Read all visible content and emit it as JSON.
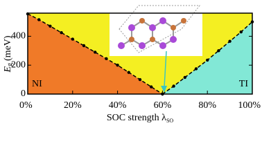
{
  "chart_data": {
    "type": "area",
    "y_label": {
      "symbol": "E",
      "sub": "g",
      "unit": "(meV)"
    },
    "x_label": {
      "text": "SOC strength λ",
      "sub": "SO"
    },
    "region_labels": [
      "NI",
      "TI"
    ],
    "background_color": "#f4ef22",
    "series": [
      {
        "name": "NI",
        "color": "#f07a28",
        "x": [
          0,
          5,
          10,
          15,
          20,
          25,
          30,
          35,
          40,
          45,
          50,
          55,
          60
        ],
        "values": [
          555,
          515,
          470,
          425,
          380,
          335,
          290,
          245,
          200,
          150,
          100,
          50,
          0
        ]
      },
      {
        "name": "TI",
        "color": "#82e8d6",
        "x": [
          60,
          65,
          70,
          75,
          80,
          85,
          90,
          95,
          100
        ],
        "values": [
          0,
          55,
          115,
          175,
          235,
          300,
          365,
          430,
          500
        ]
      }
    ],
    "xlim": [
      0,
      100
    ],
    "xticks": [
      {
        "value": 0,
        "label": "0%"
      },
      {
        "value": 20,
        "label": "20%"
      },
      {
        "value": 40,
        "label": "40%"
      },
      {
        "value": 60,
        "label": "60%"
      },
      {
        "value": 80,
        "label": "80%"
      },
      {
        "value": 100,
        "label": "100%"
      }
    ],
    "ylim": [
      0,
      560
    ],
    "yticks": [
      0,
      200,
      400
    ]
  }
}
